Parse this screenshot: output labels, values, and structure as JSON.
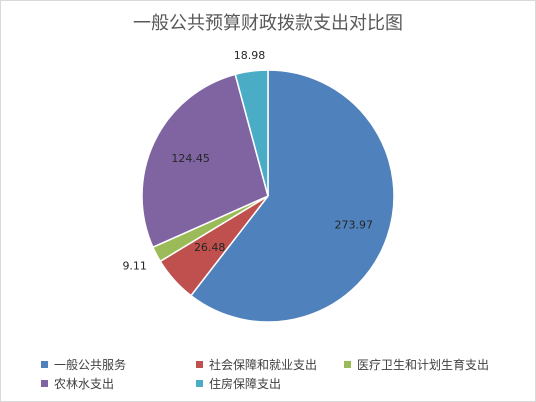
{
  "chart_data": {
    "type": "pie",
    "title": "一般公共预算财政拨款支出对比图",
    "categories": [
      "一般公共服务",
      "社会保障和就业支出",
      "医疗卫生和计划生育支出",
      "农林水支出",
      "住房保障支出"
    ],
    "values": [
      273.97,
      26.48,
      9.11,
      124.45,
      18.98
    ],
    "value_labels": [
      "273.97",
      "26.48",
      "9.11",
      "124.45",
      "18.98"
    ],
    "colors": [
      "#4f81bd",
      "#c0504d",
      "#9bbb59",
      "#8064a2",
      "#4bacc6"
    ],
    "start_angle_deg": 0,
    "direction": "clockwise",
    "legend_position": "bottom"
  }
}
